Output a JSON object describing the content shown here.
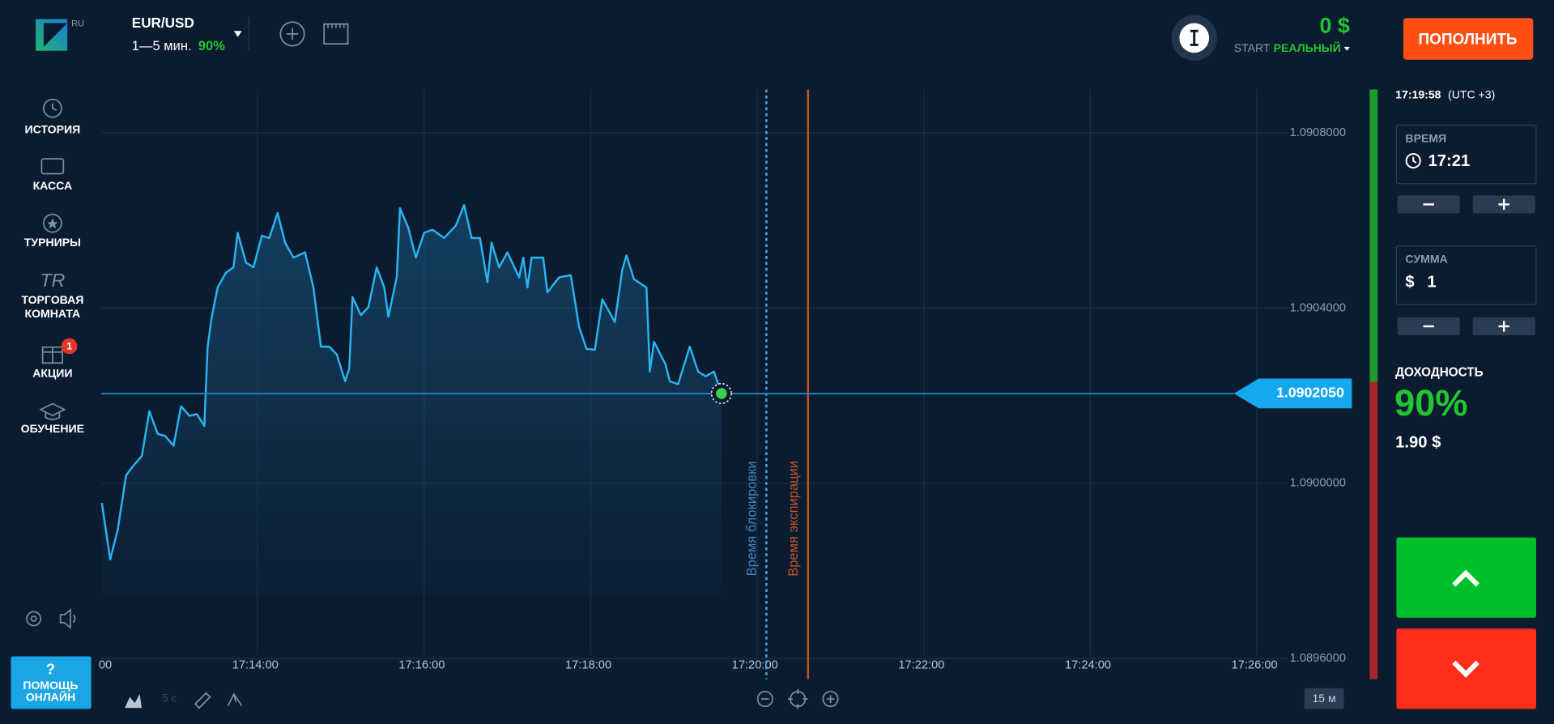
{
  "header": {
    "logo_badge": "RU",
    "asset": "EUR/USD",
    "duration": "1—5 мин.",
    "payout": "90%",
    "balance": "0 $",
    "account_plan": "START",
    "account_type": "РЕАЛЬНЫЙ",
    "deposit_button": "ПОПОЛНИТЬ"
  },
  "sidebar": {
    "history": "ИСТОРИЯ",
    "cashier": "КАССА",
    "tournaments": "ТУРНИРЫ",
    "trading_room_icon": "TR",
    "trading_room": [
      "ТОРГОВАЯ",
      "КОМНАТА"
    ],
    "promotions": "АКЦИИ",
    "promotions_badge": "1",
    "education": "ОБУЧЕНИЕ",
    "help": [
      "?",
      "ПОМОЩЬ",
      "ОНЛАЙН"
    ]
  },
  "toolbar": {
    "interval": "5 с",
    "timeframe": "15 м"
  },
  "panel": {
    "clock": "17:19:58",
    "timezone": "(UTC +3)",
    "time_label": "ВРЕМЯ",
    "time_value": "17:21",
    "amount_label": "СУММА",
    "currency": "$",
    "amount_value": "1",
    "profit_label": "ДОХОДНОСТЬ",
    "profit_percent": "90%",
    "profit_amount": "1.90 $"
  },
  "chart_data": {
    "type": "line",
    "color": "#2ab4f0",
    "grid": true,
    "x": [
      1032.13,
      1032.23,
      1032.32,
      1032.42,
      1032.51,
      1032.61,
      1032.7,
      1032.8,
      1032.89,
      1032.99,
      1033.08,
      1033.18,
      1033.27,
      1033.36,
      1033.4,
      1033.45,
      1033.52,
      1033.62,
      1033.71,
      1033.76,
      1033.86,
      1033.95,
      1034.05,
      1034.14,
      1034.24,
      1034.33,
      1034.43,
      1034.57,
      1034.67,
      1034.76,
      1034.86,
      1034.95,
      1035.05,
      1035.1,
      1035.14,
      1035.24,
      1035.33,
      1035.43,
      1035.52,
      1035.57,
      1035.67,
      1035.71,
      1035.81,
      1035.9,
      1036.0,
      1036.1,
      1036.24,
      1036.38,
      1036.48,
      1036.57,
      1036.67,
      1036.76,
      1036.81,
      1036.9,
      1037.0,
      1037.14,
      1037.19,
      1037.24,
      1037.29,
      1037.43,
      1037.48,
      1037.62,
      1037.76,
      1037.86,
      1037.95,
      1038.05,
      1038.14,
      1038.29,
      1038.38,
      1038.43,
      1038.52,
      1038.67,
      1038.71,
      1038.76,
      1038.9,
      1038.95,
      1039.05,
      1039.19,
      1039.29,
      1039.38,
      1039.48,
      1039.57
    ],
    "values": [
      1.089955,
      1.089826,
      1.089894,
      1.090018,
      1.090041,
      1.090063,
      1.090165,
      1.090113,
      1.090108,
      1.090086,
      1.090176,
      1.090154,
      1.090158,
      1.090131,
      1.090312,
      1.09038,
      1.090447,
      1.090481,
      1.090493,
      1.090572,
      1.090504,
      1.090493,
      1.090565,
      1.09056,
      1.090617,
      1.090549,
      1.090515,
      1.090527,
      1.090447,
      1.090312,
      1.090312,
      1.090294,
      1.090233,
      1.090262,
      1.090425,
      1.090384,
      1.090402,
      1.090493,
      1.090447,
      1.09038,
      1.09047,
      1.090628,
      1.090583,
      1.090515,
      1.090572,
      1.090579,
      1.09056,
      1.090588,
      1.090635,
      1.09056,
      1.09056,
      1.090459,
      1.090549,
      1.090493,
      1.090527,
      1.09047,
      1.090515,
      1.090447,
      1.090515,
      1.090515,
      1.090436,
      1.09047,
      1.090475,
      1.090357,
      1.090307,
      1.090305,
      1.09042,
      1.090368,
      1.090488,
      1.09052,
      1.090466,
      1.090447,
      1.090255,
      1.090323,
      1.090271,
      1.090233,
      1.090226,
      1.090312,
      1.090255,
      1.090244,
      1.090255,
      1.090205
    ],
    "xlim": [
      1032.12,
      1046.26
    ],
    "ylim": [
      1.089553,
      1.090899
    ],
    "xticks": [
      {
        "value": 1032,
        "label": "00"
      },
      {
        "value": 1034,
        "label": "17:14:00"
      },
      {
        "value": 1036,
        "label": "17:16:00"
      },
      {
        "value": 1038,
        "label": "17:18:00"
      },
      {
        "value": 1040,
        "label": "17:20:00"
      },
      {
        "value": 1042,
        "label": "17:22:00"
      },
      {
        "value": 1044,
        "label": "17:24:00"
      },
      {
        "value": 1046,
        "label": "17:26:00"
      }
    ],
    "yticks": [
      {
        "value": 1.0896,
        "label": "1.0896000"
      },
      {
        "value": 1.09,
        "label": "1.0900000"
      },
      {
        "value": 1.0904,
        "label": "1.0904000"
      },
      {
        "value": 1.0908,
        "label": "1.0908000"
      }
    ],
    "current_price": {
      "value": 1.090205,
      "label": "1.0902050"
    },
    "annotations": [
      {
        "label": "Время блокировки",
        "x": 1040.11,
        "color": "#3f86c4"
      },
      {
        "label": "Время экспирации",
        "x": 1040.61,
        "color": "#c2562a"
      }
    ]
  }
}
